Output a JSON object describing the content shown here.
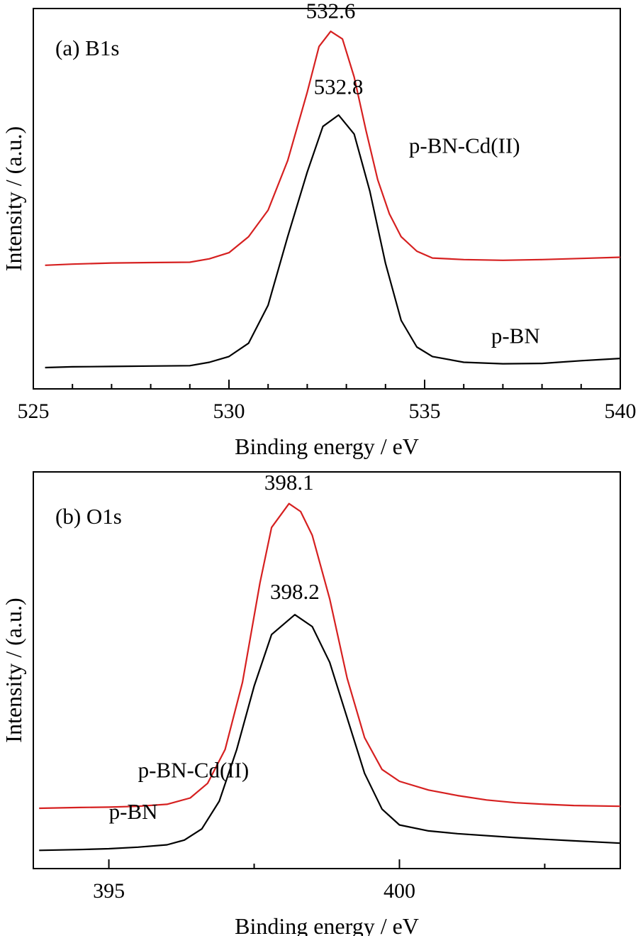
{
  "colors": {
    "red_series": "#d62020",
    "black_series": "#000000",
    "frame": "#000000"
  },
  "chart_data": [
    {
      "type": "line",
      "panel_label": "(a) B1s",
      "xlabel": "Binding energy / eV",
      "ylabel": "Intensity / (a.u.)",
      "xlim": [
        525,
        540
      ],
      "ylim": [
        0,
        100
      ],
      "xticks": [
        525,
        530,
        535,
        540
      ],
      "xtick_labels": [
        "525",
        "530",
        "535",
        "540"
      ],
      "minor_xticks": [
        526,
        527,
        528,
        529,
        531,
        532,
        533,
        534,
        536,
        537,
        538,
        539
      ],
      "grid": false,
      "series": [
        {
          "name": "p-BN-Cd(II)",
          "color": "#d62020",
          "label_at": [
            534.6,
            62
          ],
          "points": [
            [
              525.3,
              32.5
            ],
            [
              526,
              32.8
            ],
            [
              527,
              33.1
            ],
            [
              528,
              33.2
            ],
            [
              529,
              33.3
            ],
            [
              529.5,
              34.2
            ],
            [
              530,
              35.8
            ],
            [
              530.5,
              40
            ],
            [
              531,
              47
            ],
            [
              531.5,
              60
            ],
            [
              532,
              78
            ],
            [
              532.3,
              90
            ],
            [
              532.6,
              94
            ],
            [
              532.9,
              92
            ],
            [
              533.2,
              82
            ],
            [
              533.5,
              68
            ],
            [
              533.8,
              55
            ],
            [
              534.1,
              46
            ],
            [
              534.4,
              40
            ],
            [
              534.8,
              36.2
            ],
            [
              535.2,
              34.4
            ],
            [
              536,
              34
            ],
            [
              537,
              33.8
            ],
            [
              538,
              34
            ],
            [
              539,
              34.3
            ],
            [
              540,
              34.6
            ]
          ]
        },
        {
          "name": "p-BN",
          "color": "#000000",
          "label_at": [
            536.7,
            12
          ],
          "points": [
            [
              525.3,
              5.6
            ],
            [
              526,
              5.8
            ],
            [
              527,
              5.9
            ],
            [
              528,
              6
            ],
            [
              529,
              6.1
            ],
            [
              529.5,
              7
            ],
            [
              530,
              8.5
            ],
            [
              530.5,
              12
            ],
            [
              531,
              22
            ],
            [
              531.5,
              40
            ],
            [
              532,
              57
            ],
            [
              532.4,
              69
            ],
            [
              532.8,
              72
            ],
            [
              533.2,
              67
            ],
            [
              533.6,
              52
            ],
            [
              534,
              33
            ],
            [
              534.4,
              18
            ],
            [
              534.8,
              11
            ],
            [
              535.2,
              8.5
            ],
            [
              536,
              7
            ],
            [
              537,
              6.6
            ],
            [
              538,
              6.7
            ],
            [
              539,
              7.4
            ],
            [
              540,
              8
            ]
          ]
        }
      ],
      "annotations": [
        {
          "text": "532.6",
          "x": 532.6,
          "y": 97.5
        },
        {
          "text": "532.8",
          "x": 532.8,
          "y": 77.5
        }
      ]
    },
    {
      "type": "line",
      "panel_label": "(b) O1s",
      "xlabel": "Binding energy / eV",
      "ylabel": "Intensity / (a.u.)",
      "xlim": [
        393.7,
        403.8
      ],
      "ylim": [
        0,
        100
      ],
      "xticks": [
        395,
        400
      ],
      "xtick_labels": [
        "395",
        "400"
      ],
      "minor_xticks": [
        397.5,
        402.5
      ],
      "grid": false,
      "series": [
        {
          "name": "p-BN-Cd(II)",
          "color": "#d62020",
          "label_at": [
            395.5,
            23
          ],
          "points": [
            [
              393.8,
              15.2
            ],
            [
              394.5,
              15.4
            ],
            [
              395,
              15.5
            ],
            [
              395.5,
              15.7
            ],
            [
              396,
              16.2
            ],
            [
              396.4,
              17.8
            ],
            [
              396.7,
              21.5
            ],
            [
              397,
              30
            ],
            [
              397.3,
              47
            ],
            [
              397.6,
              72
            ],
            [
              397.8,
              86
            ],
            [
              398.1,
              92
            ],
            [
              398.3,
              90
            ],
            [
              398.5,
              84
            ],
            [
              398.8,
              68
            ],
            [
              399.1,
              48
            ],
            [
              399.4,
              33
            ],
            [
              399.7,
              25
            ],
            [
              400,
              22
            ],
            [
              400.5,
              19.8
            ],
            [
              401,
              18.4
            ],
            [
              401.5,
              17.3
            ],
            [
              402,
              16.6
            ],
            [
              402.5,
              16.2
            ],
            [
              403,
              15.9
            ],
            [
              403.8,
              15.7
            ]
          ]
        },
        {
          "name": "p-BN",
          "color": "#000000",
          "label_at": [
            395,
            12.5
          ],
          "points": [
            [
              393.8,
              4.6
            ],
            [
              394.5,
              4.8
            ],
            [
              395,
              5
            ],
            [
              395.5,
              5.4
            ],
            [
              396,
              6
            ],
            [
              396.3,
              7.2
            ],
            [
              396.6,
              10
            ],
            [
              396.9,
              17
            ],
            [
              397.2,
              30
            ],
            [
              397.5,
              46
            ],
            [
              397.8,
              59
            ],
            [
              398.2,
              64
            ],
            [
              398.5,
              61
            ],
            [
              398.8,
              52
            ],
            [
              399.1,
              38
            ],
            [
              399.4,
              24
            ],
            [
              399.7,
              15
            ],
            [
              400,
              11
            ],
            [
              400.5,
              9.5
            ],
            [
              401,
              8.8
            ],
            [
              402,
              7.8
            ],
            [
              403,
              7
            ],
            [
              403.8,
              6.4
            ]
          ]
        }
      ],
      "annotations": [
        {
          "text": "398.1",
          "x": 398.1,
          "y": 95.5
        },
        {
          "text": "398.2",
          "x": 398.2,
          "y": 68
        }
      ]
    }
  ]
}
